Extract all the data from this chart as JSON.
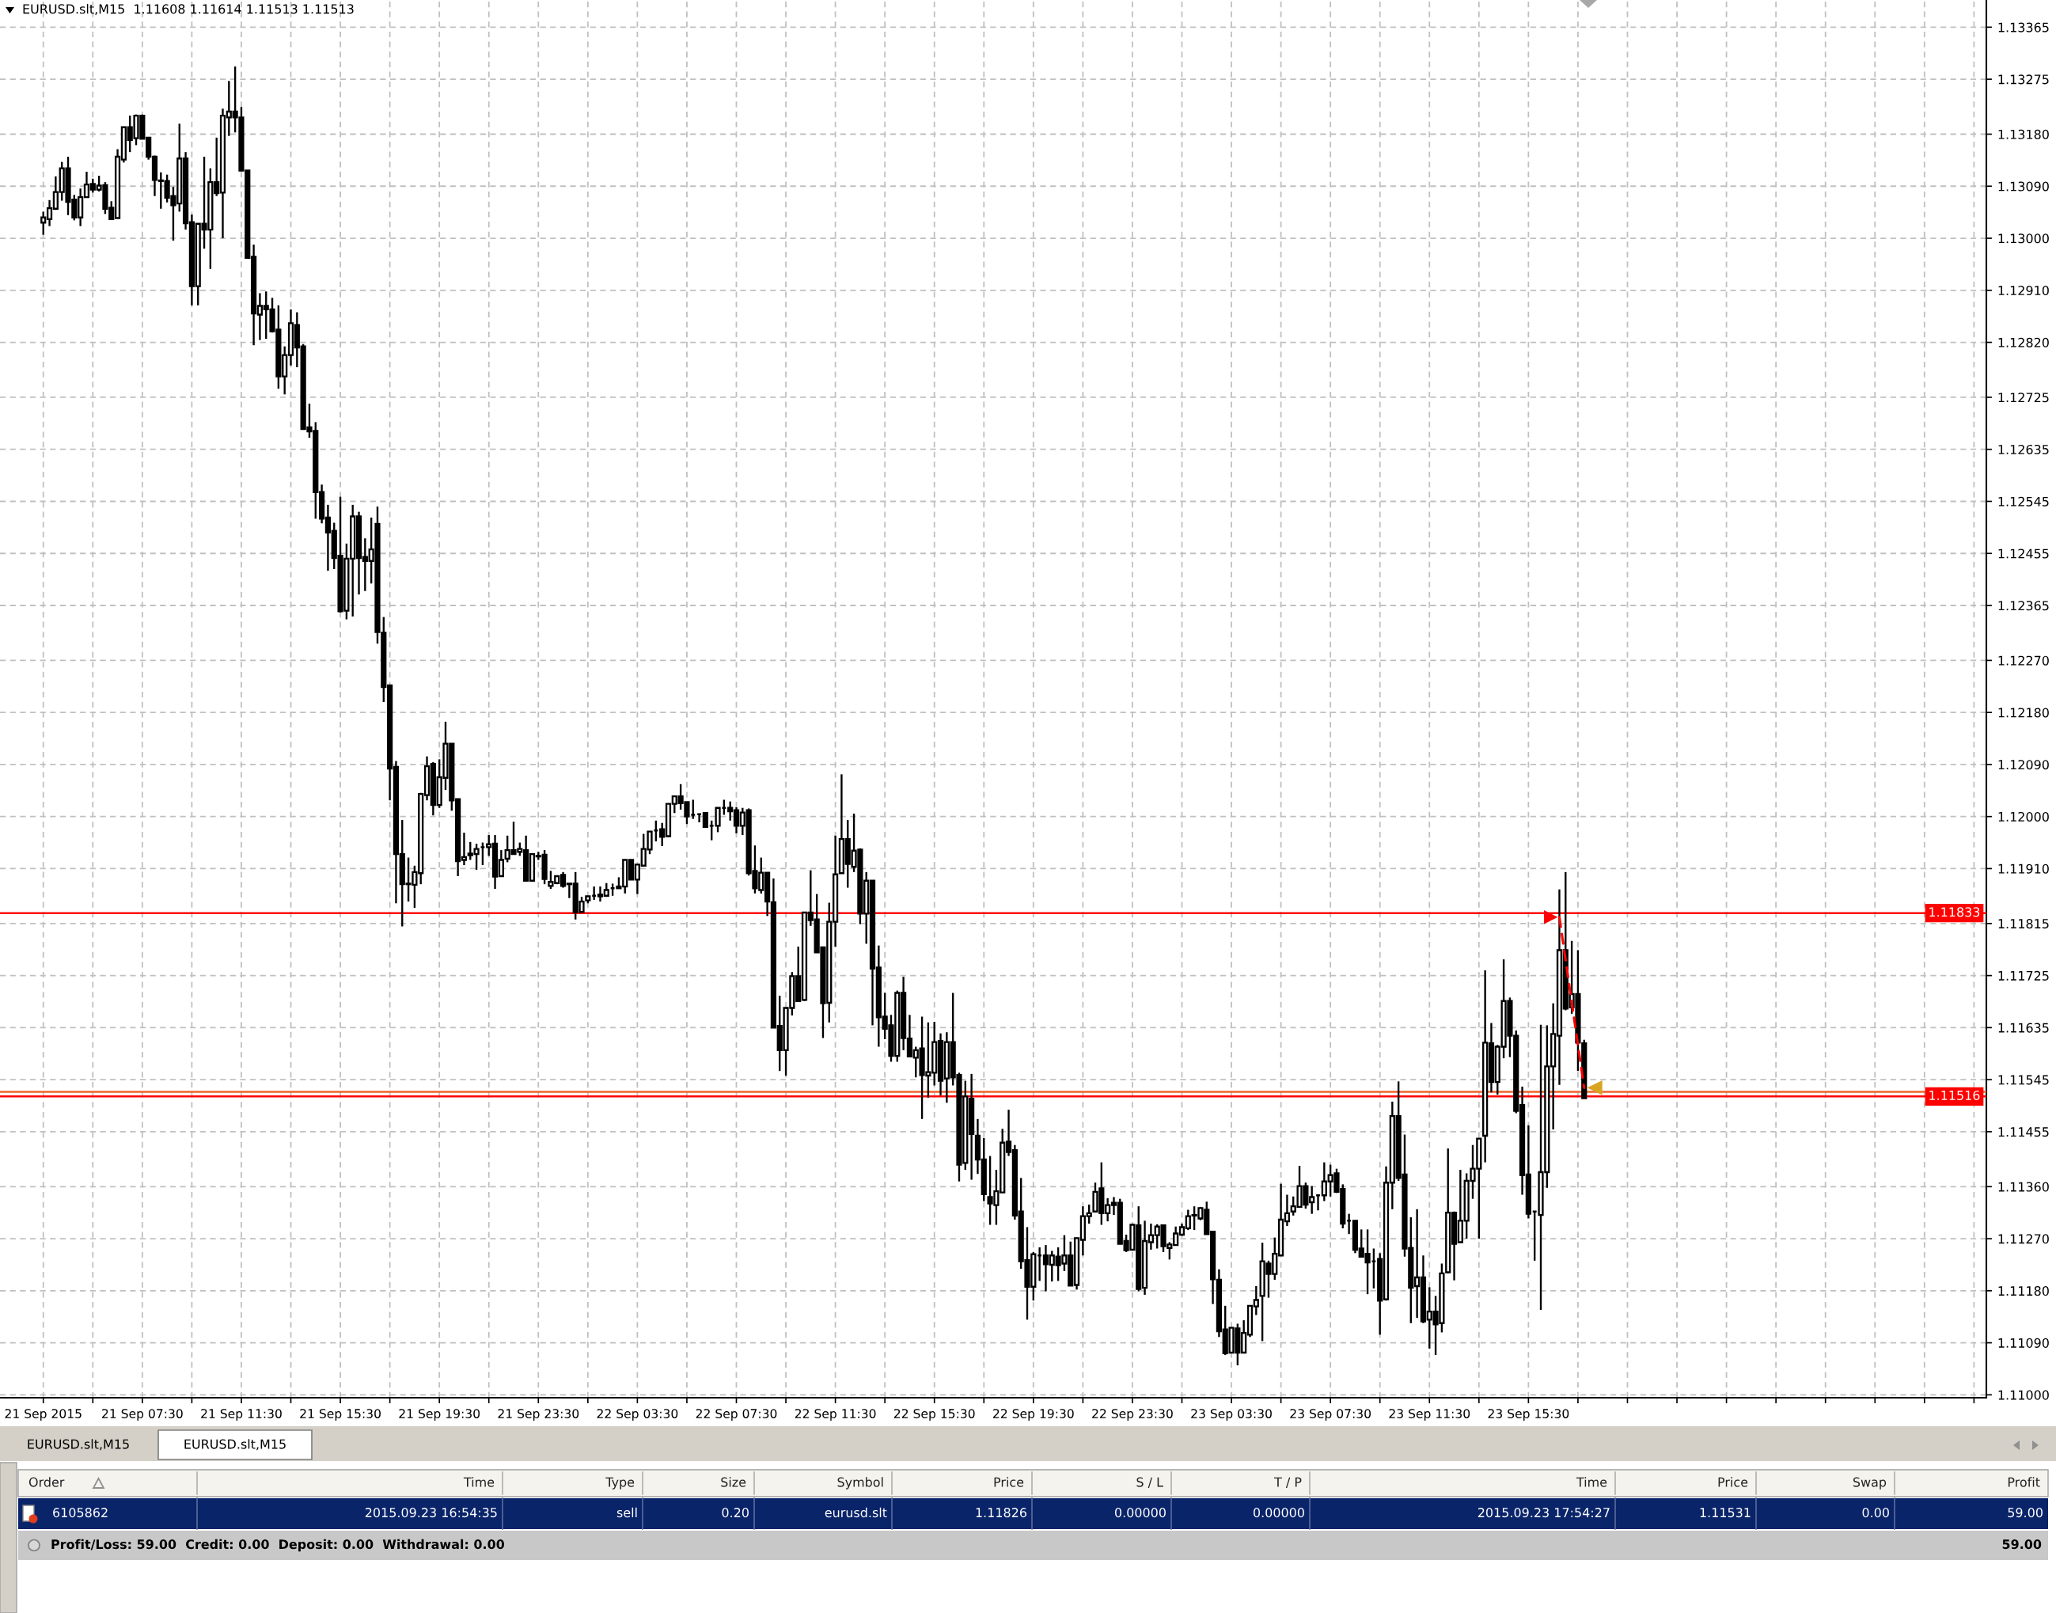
{
  "chart_data": [
    {
      "type": "candlestick",
      "title": "EURUSD.slt,M15  1.11608 1.11614 1.11513 1.11513",
      "color": "#000000",
      "x": [
        "2015-09-21T03:30",
        "2015-09-21T03:45",
        "2015-09-21T04:00",
        "2015-09-21T04:15",
        "2015-09-21T04:30",
        "2015-09-21T04:45",
        "2015-09-21T05:00",
        "2015-09-21T05:15",
        "2015-09-21T05:30",
        "2015-09-21T05:45",
        "2015-09-21T06:00",
        "2015-09-21T06:15",
        "2015-09-21T06:30",
        "2015-09-21T06:45",
        "2015-09-21T07:00",
        "2015-09-21T07:15",
        "2015-09-21T07:30",
        "2015-09-21T07:45",
        "2015-09-21T08:00",
        "2015-09-21T08:15",
        "2015-09-21T08:30",
        "2015-09-21T08:45",
        "2015-09-21T09:00",
        "2015-09-21T09:15",
        "2015-09-21T09:30",
        "2015-09-21T09:45",
        "2015-09-21T10:00",
        "2015-09-21T10:15",
        "2015-09-21T10:30",
        "2015-09-21T10:45",
        "2015-09-21T11:00",
        "2015-09-21T11:15",
        "2015-09-21T11:30",
        "2015-09-21T11:45",
        "2015-09-21T12:00",
        "2015-09-21T12:15",
        "2015-09-21T12:30",
        "2015-09-21T12:45",
        "2015-09-21T13:00",
        "2015-09-21T13:15",
        "2015-09-21T13:30",
        "2015-09-21T13:45",
        "2015-09-21T14:00",
        "2015-09-21T14:15",
        "2015-09-21T14:30",
        "2015-09-21T14:45",
        "2015-09-21T15:00",
        "2015-09-21T15:15",
        "2015-09-21T15:30",
        "2015-09-21T15:45",
        "2015-09-21T16:00",
        "2015-09-21T16:15",
        "2015-09-21T16:30",
        "2015-09-21T16:45",
        "2015-09-21T17:00",
        "2015-09-21T17:15",
        "2015-09-21T17:30",
        "2015-09-21T17:45",
        "2015-09-21T18:00",
        "2015-09-21T18:15",
        "2015-09-21T18:30",
        "2015-09-21T18:45",
        "2015-09-21T19:00",
        "2015-09-21T19:15",
        "2015-09-21T19:30",
        "2015-09-21T19:45",
        "2015-09-21T20:00",
        "2015-09-21T20:15",
        "2015-09-21T20:30",
        "2015-09-21T20:45",
        "2015-09-21T21:00",
        "2015-09-21T21:15",
        "2015-09-21T21:30",
        "2015-09-21T21:45",
        "2015-09-21T22:00",
        "2015-09-21T22:15",
        "2015-09-21T22:30",
        "2015-09-21T22:45",
        "2015-09-21T23:00",
        "2015-09-21T23:15",
        "2015-09-21T23:30",
        "2015-09-21T23:45",
        "2015-09-22T00:00",
        "2015-09-22T00:15",
        "2015-09-22T00:30",
        "2015-09-22T00:45",
        "2015-09-22T01:00",
        "2015-09-22T01:15",
        "2015-09-22T01:30",
        "2015-09-22T01:45",
        "2015-09-22T02:00",
        "2015-09-22T02:15",
        "2015-09-22T02:30",
        "2015-09-22T02:45",
        "2015-09-22T03:00",
        "2015-09-22T03:15",
        "2015-09-22T03:30",
        "2015-09-22T03:45",
        "2015-09-22T04:00",
        "2015-09-22T04:15",
        "2015-09-22T04:30",
        "2015-09-22T04:45",
        "2015-09-22T05:00",
        "2015-09-22T05:15",
        "2015-09-22T05:30",
        "2015-09-22T05:45",
        "2015-09-22T06:00",
        "2015-09-22T06:15",
        "2015-09-22T06:30",
        "2015-09-22T06:45",
        "2015-09-22T07:00",
        "2015-09-22T07:15",
        "2015-09-22T07:30",
        "2015-09-22T07:45",
        "2015-09-22T08:00",
        "2015-09-22T08:15",
        "2015-09-22T08:30",
        "2015-09-22T08:45",
        "2015-09-22T09:00",
        "2015-09-22T09:15",
        "2015-09-22T09:30",
        "2015-09-22T09:45",
        "2015-09-22T10:00",
        "2015-09-22T10:15",
        "2015-09-22T10:30",
        "2015-09-22T10:45",
        "2015-09-22T11:00",
        "2015-09-22T11:15",
        "2015-09-22T11:30",
        "2015-09-22T11:45",
        "2015-09-22T12:00",
        "2015-09-22T12:15",
        "2015-09-22T12:30",
        "2015-09-22T12:45",
        "2015-09-22T13:00",
        "2015-09-22T13:15",
        "2015-09-22T13:30",
        "2015-09-22T13:45",
        "2015-09-22T14:00",
        "2015-09-22T14:15",
        "2015-09-22T14:30",
        "2015-09-22T14:45",
        "2015-09-22T15:00",
        "2015-09-22T15:15",
        "2015-09-22T15:30",
        "2015-09-22T15:45",
        "2015-09-22T16:00",
        "2015-09-22T16:15",
        "2015-09-22T16:30",
        "2015-09-22T16:45",
        "2015-09-22T17:00",
        "2015-09-22T17:15",
        "2015-09-22T17:30",
        "2015-09-22T17:45",
        "2015-09-22T18:00",
        "2015-09-22T18:15",
        "2015-09-22T18:30",
        "2015-09-22T18:45",
        "2015-09-22T19:00",
        "2015-09-22T19:15",
        "2015-09-22T19:30",
        "2015-09-22T19:45",
        "2015-09-22T20:00",
        "2015-09-22T20:15",
        "2015-09-22T20:30",
        "2015-09-22T20:45",
        "2015-09-22T21:00",
        "2015-09-22T21:15",
        "2015-09-22T21:30",
        "2015-09-22T21:45",
        "2015-09-22T22:00",
        "2015-09-22T22:15",
        "2015-09-22T22:30",
        "2015-09-22T22:45",
        "2015-09-22T23:00",
        "2015-09-22T23:15",
        "2015-09-22T23:30",
        "2015-09-22T23:45",
        "2015-09-23T00:00",
        "2015-09-23T00:15",
        "2015-09-23T00:30",
        "2015-09-23T00:45",
        "2015-09-23T01:00",
        "2015-09-23T01:15",
        "2015-09-23T01:30",
        "2015-09-23T01:45",
        "2015-09-23T02:00",
        "2015-09-23T02:15",
        "2015-09-23T02:30",
        "2015-09-23T02:45",
        "2015-09-23T03:00",
        "2015-09-23T03:15",
        "2015-09-23T03:30",
        "2015-09-23T03:45",
        "2015-09-23T04:00",
        "2015-09-23T04:15",
        "2015-09-23T04:30",
        "2015-09-23T04:45",
        "2015-09-23T05:00",
        "2015-09-23T05:15",
        "2015-09-23T05:30",
        "2015-09-23T05:45",
        "2015-09-23T06:00",
        "2015-09-23T06:15",
        "2015-09-23T06:30",
        "2015-09-23T06:45",
        "2015-09-23T07:00",
        "2015-09-23T07:15",
        "2015-09-23T07:30",
        "2015-09-23T07:45",
        "2015-09-23T08:00",
        "2015-09-23T08:15",
        "2015-09-23T08:30",
        "2015-09-23T08:45",
        "2015-09-23T09:00",
        "2015-09-23T09:15",
        "2015-09-23T09:30",
        "2015-09-23T09:45",
        "2015-09-23T10:00",
        "2015-09-23T10:15",
        "2015-09-23T10:30",
        "2015-09-23T10:45",
        "2015-09-23T11:00",
        "2015-09-23T11:15",
        "2015-09-23T11:30",
        "2015-09-23T11:45",
        "2015-09-23T12:00",
        "2015-09-23T12:15",
        "2015-09-23T12:30",
        "2015-09-23T12:45",
        "2015-09-23T13:00",
        "2015-09-23T13:15",
        "2015-09-23T13:30",
        "2015-09-23T13:45",
        "2015-09-23T14:00",
        "2015-09-23T14:15",
        "2015-09-23T14:30",
        "2015-09-23T14:45",
        "2015-09-23T15:00",
        "2015-09-23T15:15",
        "2015-09-23T15:30",
        "2015-09-23T15:45",
        "2015-09-23T16:00",
        "2015-09-23T16:15",
        "2015-09-23T16:30",
        "2015-09-23T16:45",
        "2015-09-23T17:00",
        "2015-09-23T17:15",
        "2015-09-23T17:30",
        "2015-09-23T17:45"
      ],
      "ohlc": [
        [
          1.13027,
          1.13046,
          1.13006,
          1.13036
        ],
        [
          1.13033,
          1.13066,
          1.13021,
          1.13052
        ],
        [
          1.13051,
          1.13107,
          1.13049,
          1.1308
        ],
        [
          1.1308,
          1.13132,
          1.13065,
          1.13121
        ],
        [
          1.13121,
          1.13141,
          1.1304,
          1.13063
        ],
        [
          1.13067,
          1.13075,
          1.13031,
          1.13036
        ],
        [
          1.13036,
          1.13086,
          1.13021,
          1.13071
        ],
        [
          1.13071,
          1.13115,
          1.1307,
          1.13093
        ],
        [
          1.13094,
          1.13103,
          1.13079,
          1.13084
        ],
        [
          1.13084,
          1.13108,
          1.13081,
          1.13091
        ],
        [
          1.13092,
          1.13097,
          1.13042,
          1.13051
        ],
        [
          1.13053,
          1.13064,
          1.13033,
          1.13033
        ],
        [
          1.13035,
          1.13154,
          1.13035,
          1.13141
        ],
        [
          1.13136,
          1.13192,
          1.13131,
          1.13192
        ],
        [
          1.13192,
          1.13212,
          1.13149,
          1.1317
        ],
        [
          1.13173,
          1.13214,
          1.13161,
          1.13212
        ],
        [
          1.13212,
          1.13214,
          1.13172,
          1.13172
        ],
        [
          1.13174,
          1.13174,
          1.13136,
          1.13141
        ],
        [
          1.13141,
          1.13143,
          1.13073,
          1.13101
        ],
        [
          1.131,
          1.13114,
          1.13051,
          1.13099
        ],
        [
          1.13099,
          1.1311,
          1.13062,
          1.1307
        ],
        [
          1.13073,
          1.13089,
          1.12996,
          1.13057
        ],
        [
          1.1306,
          1.13198,
          1.13046,
          1.13138
        ],
        [
          1.13138,
          1.13149,
          1.13015,
          1.13026
        ],
        [
          1.13028,
          1.13041,
          1.12884,
          1.12917
        ],
        [
          1.12917,
          1.13025,
          1.12884,
          1.13025
        ],
        [
          1.13025,
          1.13141,
          1.12982,
          1.13015
        ],
        [
          1.13015,
          1.13121,
          1.12947,
          1.13097
        ],
        [
          1.13097,
          1.13174,
          1.13073,
          1.13078
        ],
        [
          1.13079,
          1.13224,
          1.13,
          1.13212
        ],
        [
          1.13209,
          1.13272,
          1.13177,
          1.13219
        ],
        [
          1.13219,
          1.13297,
          1.13183,
          1.13209
        ],
        [
          1.13209,
          1.13227,
          1.13117,
          1.13117
        ],
        [
          1.13117,
          1.13117,
          1.12966,
          1.12966
        ],
        [
          1.12968,
          1.12989,
          1.12815,
          1.1287
        ],
        [
          1.12868,
          1.12905,
          1.12824,
          1.12883
        ],
        [
          1.12883,
          1.12908,
          1.12826,
          1.12877
        ],
        [
          1.12877,
          1.12897,
          1.12837,
          1.12839
        ],
        [
          1.12842,
          1.12884,
          1.1274,
          1.12761
        ],
        [
          1.12761,
          1.12813,
          1.1273,
          1.12798
        ],
        [
          1.12798,
          1.12877,
          1.1278,
          1.12853
        ],
        [
          1.1285,
          1.12872,
          1.12777,
          1.12811
        ],
        [
          1.12813,
          1.12817,
          1.1267,
          1.1267
        ],
        [
          1.12673,
          1.12714,
          1.12655,
          1.12666
        ],
        [
          1.12667,
          1.12682,
          1.12515,
          1.12561
        ],
        [
          1.12561,
          1.12574,
          1.12507,
          1.12515
        ],
        [
          1.12517,
          1.12539,
          1.12425,
          1.12491
        ],
        [
          1.12494,
          1.12508,
          1.12428,
          1.12447
        ],
        [
          1.12451,
          1.12553,
          1.12353,
          1.12355
        ],
        [
          1.12356,
          1.12472,
          1.12341,
          1.12446
        ],
        [
          1.12446,
          1.12539,
          1.12346,
          1.12519
        ],
        [
          1.12519,
          1.12527,
          1.12384,
          1.12447
        ],
        [
          1.12449,
          1.12481,
          1.1239,
          1.12442
        ],
        [
          1.12442,
          1.12517,
          1.12403,
          1.12462
        ],
        [
          1.12506,
          1.12536,
          1.12299,
          1.12319
        ],
        [
          1.12318,
          1.12345,
          1.12198,
          1.12224
        ],
        [
          1.12227,
          1.12227,
          1.12028,
          1.12083
        ],
        [
          1.12086,
          1.12096,
          1.1185,
          1.11935
        ],
        [
          1.11935,
          1.11994,
          1.1181,
          1.11883
        ],
        [
          1.11884,
          1.11929,
          1.11853,
          1.11883
        ],
        [
          1.11882,
          1.11915,
          1.11842,
          1.11904
        ],
        [
          1.11902,
          1.12041,
          1.11883,
          1.12039
        ],
        [
          1.12037,
          1.12104,
          1.12028,
          1.12087
        ],
        [
          1.12091,
          1.12094,
          1.12002,
          1.1202
        ],
        [
          1.1202,
          1.12099,
          1.12015,
          1.12068
        ],
        [
          1.12067,
          1.12164,
          1.12046,
          1.12126
        ],
        [
          1.12126,
          1.12126,
          1.1201,
          1.12028
        ],
        [
          1.1203,
          1.1203,
          1.11897,
          1.11923
        ],
        [
          1.11925,
          1.11972,
          1.11916,
          1.1193
        ],
        [
          1.11936,
          1.11956,
          1.11925,
          1.11933
        ],
        [
          1.11935,
          1.11953,
          1.11908,
          1.11944
        ],
        [
          1.11947,
          1.11955,
          1.11916,
          1.11947
        ],
        [
          1.11947,
          1.11968,
          1.11932,
          1.11952
        ],
        [
          1.11953,
          1.11968,
          1.11875,
          1.11896
        ],
        [
          1.11897,
          1.11942,
          1.11897,
          1.11925
        ],
        [
          1.11927,
          1.11967,
          1.11921,
          1.11942
        ],
        [
          1.11942,
          1.11991,
          1.11935,
          1.11935
        ],
        [
          1.11939,
          1.11955,
          1.11932,
          1.11944
        ],
        [
          1.11942,
          1.11967,
          1.11889,
          1.11889
        ],
        [
          1.11889,
          1.11936,
          1.11889,
          1.11935
        ],
        [
          1.11932,
          1.11939,
          1.11925,
          1.11931
        ],
        [
          1.11934,
          1.11942,
          1.11883,
          1.11892
        ],
        [
          1.1188,
          1.11906,
          1.11875,
          1.11887
        ],
        [
          1.11885,
          1.11898,
          1.11883,
          1.11897
        ],
        [
          1.11899,
          1.11904,
          1.11877,
          1.1188
        ],
        [
          1.11884,
          1.11884,
          1.11859,
          1.11883
        ],
        [
          1.11884,
          1.11904,
          1.11822,
          1.11835
        ],
        [
          1.11835,
          1.11861,
          1.11835,
          1.11853
        ],
        [
          1.11855,
          1.11863,
          1.1185,
          1.11862
        ],
        [
          1.11863,
          1.11879,
          1.11856,
          1.11863
        ],
        [
          1.11865,
          1.11879,
          1.11853,
          1.11862
        ],
        [
          1.11863,
          1.11885,
          1.11861,
          1.11873
        ],
        [
          1.11876,
          1.11884,
          1.11863,
          1.11876
        ],
        [
          1.11879,
          1.11895,
          1.11876,
          1.11876
        ],
        [
          1.11879,
          1.11925,
          1.11867,
          1.11925
        ],
        [
          1.11925,
          1.11925,
          1.11891,
          1.11891
        ],
        [
          1.11891,
          1.11917,
          1.11866,
          1.11917
        ],
        [
          1.11915,
          1.1197,
          1.11914,
          1.11944
        ],
        [
          1.11943,
          1.11974,
          1.11935,
          1.11974
        ],
        [
          1.11976,
          1.11993,
          1.11957,
          1.11976
        ],
        [
          1.11978,
          1.11989,
          1.11949,
          1.11965
        ],
        [
          1.11966,
          1.12022,
          1.11965,
          1.12022
        ],
        [
          1.12022,
          1.12035,
          1.12006,
          1.12035
        ],
        [
          1.12035,
          1.12056,
          1.12012,
          1.12023
        ],
        [
          1.12025,
          1.12025,
          1.11987,
          1.12
        ],
        [
          1.12003,
          1.12029,
          1.11996,
          1.12003
        ],
        [
          1.12004,
          1.12004,
          1.1199,
          1.12004
        ],
        [
          1.12006,
          1.12007,
          1.11982,
          1.11982
        ],
        [
          1.11984,
          1.11993,
          1.11959,
          1.11984
        ],
        [
          1.11984,
          1.12015,
          1.11973,
          1.12015
        ],
        [
          1.12015,
          1.12029,
          1.12003,
          1.12015
        ],
        [
          1.12015,
          1.12026,
          1.11993,
          1.12009
        ],
        [
          1.12011,
          1.12016,
          1.11971,
          1.11984
        ],
        [
          1.11984,
          1.12015,
          1.11968,
          1.12007
        ],
        [
          1.12011,
          1.12014,
          1.11898,
          1.11902
        ],
        [
          1.11906,
          1.1195,
          1.11867,
          1.11876
        ],
        [
          1.11873,
          1.11929,
          1.11867,
          1.11903
        ],
        [
          1.11903,
          1.11903,
          1.11828,
          1.11853
        ],
        [
          1.11852,
          1.11893,
          1.11635,
          1.11635
        ],
        [
          1.11638,
          1.1169,
          1.1156,
          1.11596
        ],
        [
          1.11596,
          1.11669,
          1.11552,
          1.11669
        ],
        [
          1.11669,
          1.11731,
          1.11656,
          1.11724
        ],
        [
          1.11724,
          1.11775,
          1.11681,
          1.11681
        ],
        [
          1.11683,
          1.11834,
          1.11681,
          1.11834
        ],
        [
          1.11834,
          1.11907,
          1.11811,
          1.11821
        ],
        [
          1.11822,
          1.11866,
          1.11765,
          1.11765
        ],
        [
          1.11774,
          1.11774,
          1.11617,
          1.11677
        ],
        [
          1.11678,
          1.11851,
          1.11644,
          1.11818
        ],
        [
          1.11818,
          1.11967,
          1.11775,
          1.119
        ],
        [
          1.11902,
          1.12073,
          1.11902,
          1.11961
        ],
        [
          1.11961,
          1.11994,
          1.11877,
          1.11918
        ],
        [
          1.11913,
          1.12005,
          1.11904,
          1.11941
        ],
        [
          1.11943,
          1.11945,
          1.11814,
          1.11832
        ],
        [
          1.11832,
          1.11904,
          1.1178,
          1.11889
        ],
        [
          1.11889,
          1.11889,
          1.11639,
          1.11737
        ],
        [
          1.11739,
          1.11777,
          1.11602,
          1.11653
        ],
        [
          1.11654,
          1.11695,
          1.11615,
          1.11633
        ],
        [
          1.11639,
          1.11657,
          1.11576,
          1.11586
        ],
        [
          1.11586,
          1.11699,
          1.11576,
          1.11695
        ],
        [
          1.11695,
          1.11723,
          1.11596,
          1.11617
        ],
        [
          1.11616,
          1.11657,
          1.11585,
          1.11585
        ],
        [
          1.11583,
          1.11602,
          1.11549,
          1.11596
        ],
        [
          1.11599,
          1.11654,
          1.11477,
          1.11553
        ],
        [
          1.11552,
          1.11644,
          1.11514,
          1.11558
        ],
        [
          1.11557,
          1.11645,
          1.11535,
          1.1161
        ],
        [
          1.11612,
          1.11625,
          1.11518,
          1.11543
        ],
        [
          1.11547,
          1.11627,
          1.11505,
          1.1161
        ],
        [
          1.1161,
          1.11695,
          1.11535,
          1.11549
        ],
        [
          1.11553,
          1.11557,
          1.11369,
          1.11398
        ],
        [
          1.11401,
          1.11543,
          1.11389,
          1.11516
        ],
        [
          1.11512,
          1.11555,
          1.11372,
          1.11451
        ],
        [
          1.11448,
          1.11477,
          1.11382,
          1.11407
        ],
        [
          1.11407,
          1.11444,
          1.11335,
          1.11347
        ],
        [
          1.11342,
          1.11413,
          1.11294,
          1.11331
        ],
        [
          1.11328,
          1.11389,
          1.11294,
          1.11352
        ],
        [
          1.1135,
          1.1146,
          1.1135,
          1.11436
        ],
        [
          1.11438,
          1.11493,
          1.11413,
          1.1142
        ],
        [
          1.11423,
          1.11432,
          1.11303,
          1.1131
        ],
        [
          1.11317,
          1.11375,
          1.11218,
          1.11231
        ],
        [
          1.11233,
          1.1129,
          1.1113,
          1.11187
        ],
        [
          1.11187,
          1.11247,
          1.11163,
          1.11243
        ],
        [
          1.11241,
          1.11255,
          1.11197,
          1.11241
        ],
        [
          1.11241,
          1.11259,
          1.11179,
          1.11226
        ],
        [
          1.11225,
          1.11249,
          1.11196,
          1.11241
        ],
        [
          1.11239,
          1.11255,
          1.11197,
          1.11224
        ],
        [
          1.11227,
          1.11276,
          1.11214,
          1.11241
        ],
        [
          1.11241,
          1.11265,
          1.11188,
          1.11189
        ],
        [
          1.1119,
          1.11272,
          1.11182,
          1.11271
        ],
        [
          1.11268,
          1.11326,
          1.11241,
          1.11309
        ],
        [
          1.11309,
          1.11329,
          1.11296,
          1.11314
        ],
        [
          1.11317,
          1.11367,
          1.11317,
          1.11351
        ],
        [
          1.11357,
          1.11402,
          1.11294,
          1.11314
        ],
        [
          1.11314,
          1.1134,
          1.113,
          1.11328
        ],
        [
          1.11332,
          1.11342,
          1.11311,
          1.11328
        ],
        [
          1.11332,
          1.11339,
          1.11261,
          1.11261
        ],
        [
          1.11266,
          1.11277,
          1.11247,
          1.1125
        ],
        [
          1.11251,
          1.11296,
          1.11251,
          1.11294
        ],
        [
          1.11293,
          1.11326,
          1.11179,
          1.11183
        ],
        [
          1.11185,
          1.11301,
          1.11173,
          1.11266
        ],
        [
          1.11264,
          1.11296,
          1.11251,
          1.11276
        ],
        [
          1.11276,
          1.11295,
          1.11253,
          1.11291
        ],
        [
          1.11293,
          1.11293,
          1.11247,
          1.11257
        ],
        [
          1.11254,
          1.11264,
          1.11234,
          1.1126
        ],
        [
          1.11259,
          1.11291,
          1.11259,
          1.11279
        ],
        [
          1.11277,
          1.11296,
          1.11275,
          1.1129
        ],
        [
          1.11288,
          1.1132,
          1.11285,
          1.11309
        ],
        [
          1.11311,
          1.11326,
          1.11285,
          1.1131
        ],
        [
          1.11305,
          1.11325,
          1.11302,
          1.11323
        ],
        [
          1.1132,
          1.11334,
          1.11278,
          1.11278
        ],
        [
          1.11282,
          1.11282,
          1.11157,
          1.112
        ],
        [
          1.11199,
          1.11217,
          1.111,
          1.1111
        ],
        [
          1.11113,
          1.11154,
          1.11069,
          1.11072
        ],
        [
          1.11073,
          1.11117,
          1.11073,
          1.11116
        ],
        [
          1.11115,
          1.11123,
          1.11051,
          1.11073
        ],
        [
          1.11073,
          1.11129,
          1.11073,
          1.11107
        ],
        [
          1.11104,
          1.11154,
          1.111,
          1.11154
        ],
        [
          1.11153,
          1.11188,
          1.11138,
          1.11164
        ],
        [
          1.11171,
          1.11263,
          1.11093,
          1.11231
        ],
        [
          1.11227,
          1.11232,
          1.11168,
          1.11209
        ],
        [
          1.11209,
          1.11272,
          1.11199,
          1.11244
        ],
        [
          1.11241,
          1.11365,
          1.11241,
          1.11303
        ],
        [
          1.113,
          1.11346,
          1.11292,
          1.11314
        ],
        [
          1.11317,
          1.11343,
          1.1131,
          1.11326
        ],
        [
          1.11325,
          1.11396,
          1.11325,
          1.11361
        ],
        [
          1.11361,
          1.11367,
          1.11322,
          1.11329
        ],
        [
          1.11333,
          1.11361,
          1.11313,
          1.11342
        ],
        [
          1.11345,
          1.11345,
          1.11319,
          1.11345
        ],
        [
          1.11345,
          1.11402,
          1.11335,
          1.11369
        ],
        [
          1.11369,
          1.11398,
          1.11343,
          1.1138
        ],
        [
          1.11383,
          1.11391,
          1.11349,
          1.11351
        ],
        [
          1.11356,
          1.11364,
          1.11288,
          1.11296
        ],
        [
          1.11301,
          1.11313,
          1.11278,
          1.11301
        ],
        [
          1.11301,
          1.11301,
          1.11245,
          1.11251
        ],
        [
          1.11253,
          1.11286,
          1.11239,
          1.11239
        ],
        [
          1.11244,
          1.11286,
          1.11174,
          1.11229
        ],
        [
          1.11231,
          1.11253,
          1.11184,
          1.11231
        ],
        [
          1.11235,
          1.11245,
          1.11104,
          1.11163
        ],
        [
          1.11165,
          1.11395,
          1.11163,
          1.11367
        ],
        [
          1.11367,
          1.11507,
          1.11321,
          1.11482
        ],
        [
          1.11482,
          1.11542,
          1.1137,
          1.11375
        ],
        [
          1.11381,
          1.1145,
          1.11239,
          1.11253
        ],
        [
          1.11254,
          1.11307,
          1.11124,
          1.11185
        ],
        [
          1.11188,
          1.11321,
          1.11133,
          1.11203
        ],
        [
          1.11203,
          1.11241,
          1.11124,
          1.11127
        ],
        [
          1.1113,
          1.11186,
          1.1108,
          1.11144
        ],
        [
          1.11144,
          1.11171,
          1.11069,
          1.11122
        ],
        [
          1.11124,
          1.11227,
          1.11108,
          1.1121
        ],
        [
          1.11212,
          1.11426,
          1.1121,
          1.11315
        ],
        [
          1.11315,
          1.11317,
          1.11198,
          1.11261
        ],
        [
          1.11264,
          1.11389,
          1.11264,
          1.11301
        ],
        [
          1.11301,
          1.11383,
          1.1127,
          1.1137
        ],
        [
          1.1137,
          1.11432,
          1.11339,
          1.11391
        ],
        [
          1.11391,
          1.11443,
          1.1127,
          1.11443
        ],
        [
          1.11448,
          1.11734,
          1.11402,
          1.11609
        ],
        [
          1.11608,
          1.11643,
          1.11523,
          1.11541
        ],
        [
          1.11541,
          1.11605,
          1.11519,
          1.11602
        ],
        [
          1.11602,
          1.11753,
          1.11582,
          1.11681
        ],
        [
          1.11681,
          1.11687,
          1.11584,
          1.11621
        ],
        [
          1.11621,
          1.1163,
          1.11487,
          1.11491
        ],
        [
          1.11501,
          1.11533,
          1.11346,
          1.1138
        ],
        [
          1.11381,
          1.11466,
          1.11305,
          1.11313
        ],
        [
          1.11317,
          1.11317,
          1.11232,
          1.11317
        ],
        [
          1.11311,
          1.1164,
          1.11147,
          1.11385
        ],
        [
          1.11385,
          1.11639,
          1.11358,
          1.11568
        ],
        [
          1.11568,
          1.11677,
          1.11459,
          1.11624
        ],
        [
          1.11621,
          1.11874,
          1.11536,
          1.11769
        ],
        [
          1.11769,
          1.11904,
          1.11665,
          1.11668
        ],
        [
          1.1167,
          1.11785,
          1.11659,
          1.11693
        ],
        [
          1.11693,
          1.11769,
          1.1156,
          1.11609
        ],
        [
          1.11608,
          1.11614,
          1.11513,
          1.11513
        ]
      ],
      "series": [
        {
          "type": "line",
          "x": [
            "2015-09-23T16:45",
            "2015-09-23T17:45"
          ],
          "values": [
            1.11826,
            1.11531
          ],
          "color": "#ff0000",
          "line_style": "dashed"
        }
      ],
      "ref_lines": [
        {
          "axis": "y",
          "value": 1.11833,
          "label": "1.11833",
          "color": "#ff0000"
        },
        {
          "axis": "y",
          "value": 1.11524,
          "color": "#f0642d"
        },
        {
          "axis": "y",
          "value": 1.11516,
          "label": "1.11516",
          "color": "#ff0000"
        }
      ],
      "xlim": [
        "2015-09-21T01:45",
        "2015-09-24T10:00"
      ],
      "ylim": [
        1.10995,
        1.13412
      ],
      "xticks": [
        {
          "value": "2015-09-21T03:30",
          "label": "21 Sep 2015"
        },
        {
          "value": "2015-09-21T05:30",
          "label": null
        },
        {
          "value": "2015-09-21T07:30",
          "label": "21 Sep 07:30"
        },
        {
          "value": "2015-09-21T09:30",
          "label": null
        },
        {
          "value": "2015-09-21T11:30",
          "label": "21 Sep 11:30"
        },
        {
          "value": "2015-09-21T13:30",
          "label": null
        },
        {
          "value": "2015-09-21T15:30",
          "label": "21 Sep 15:30"
        },
        {
          "value": "2015-09-21T17:30",
          "label": null
        },
        {
          "value": "2015-09-21T19:30",
          "label": "21 Sep 19:30"
        },
        {
          "value": "2015-09-21T21:30",
          "label": null
        },
        {
          "value": "2015-09-21T23:30",
          "label": "21 Sep 23:30"
        },
        {
          "value": "2015-09-22T01:30",
          "label": null
        },
        {
          "value": "2015-09-22T03:30",
          "label": "22 Sep 03:30"
        },
        {
          "value": "2015-09-22T05:30",
          "label": null
        },
        {
          "value": "2015-09-22T07:30",
          "label": "22 Sep 07:30"
        },
        {
          "value": "2015-09-22T09:30",
          "label": null
        },
        {
          "value": "2015-09-22T11:30",
          "label": "22 Sep 11:30"
        },
        {
          "value": "2015-09-22T13:30",
          "label": null
        },
        {
          "value": "2015-09-22T15:30",
          "label": "22 Sep 15:30"
        },
        {
          "value": "2015-09-22T17:30",
          "label": null
        },
        {
          "value": "2015-09-22T19:30",
          "label": "22 Sep 19:30"
        },
        {
          "value": "2015-09-22T21:30",
          "label": null
        },
        {
          "value": "2015-09-22T23:30",
          "label": "22 Sep 23:30"
        },
        {
          "value": "2015-09-23T01:30",
          "label": null
        },
        {
          "value": "2015-09-23T03:30",
          "label": "23 Sep 03:30"
        },
        {
          "value": "2015-09-23T05:30",
          "label": null
        },
        {
          "value": "2015-09-23T07:30",
          "label": "23 Sep 07:30"
        },
        {
          "value": "2015-09-23T09:30",
          "label": null
        },
        {
          "value": "2015-09-23T11:30",
          "label": "23 Sep 11:30"
        },
        {
          "value": "2015-09-23T13:30",
          "label": null
        },
        {
          "value": "2015-09-23T15:30",
          "label": "23 Sep 15:30"
        },
        {
          "value": "2015-09-23T17:30",
          "label": null
        },
        {
          "value": "2015-09-23T19:30",
          "label": null
        },
        {
          "value": "2015-09-23T21:30",
          "label": null
        },
        {
          "value": "2015-09-23T23:30",
          "label": null
        },
        {
          "value": "2015-09-24T01:30",
          "label": null
        },
        {
          "value": "2015-09-24T03:30",
          "label": null
        },
        {
          "value": "2015-09-24T05:30",
          "label": null
        },
        {
          "value": "2015-09-24T07:30",
          "label": null
        },
        {
          "value": "2015-09-24T09:30",
          "label": null
        }
      ],
      "yticks": [
        {
          "value": 1.11,
          "label": "1.11000"
        },
        {
          "value": 1.1109,
          "label": "1.11090"
        },
        {
          "value": 1.1118,
          "label": "1.11180"
        },
        {
          "value": 1.1127,
          "label": "1.11270"
        },
        {
          "value": 1.1136,
          "label": "1.11360"
        },
        {
          "value": 1.11455,
          "label": "1.11455"
        },
        {
          "value": 1.11545,
          "label": "1.11545"
        },
        {
          "value": 1.11635,
          "label": "1.11635"
        },
        {
          "value": 1.11725,
          "label": "1.11725"
        },
        {
          "value": 1.11815,
          "label": "1.11815"
        },
        {
          "value": 1.1191,
          "label": "1.11910"
        },
        {
          "value": 1.12,
          "label": "1.12000"
        },
        {
          "value": 1.1209,
          "label": "1.12090"
        },
        {
          "value": 1.1218,
          "label": "1.12180"
        },
        {
          "value": 1.1227,
          "label": "1.12270"
        },
        {
          "value": 1.12365,
          "label": "1.12365"
        },
        {
          "value": 1.12455,
          "label": "1.12455"
        },
        {
          "value": 1.12545,
          "label": "1.12545"
        },
        {
          "value": 1.12635,
          "label": "1.12635"
        },
        {
          "value": 1.12725,
          "label": "1.12725"
        },
        {
          "value": 1.1282,
          "label": "1.12820"
        },
        {
          "value": 1.1291,
          "label": "1.12910"
        },
        {
          "value": 1.13,
          "label": "1.13000"
        },
        {
          "value": 1.1309,
          "label": "1.13090"
        },
        {
          "value": 1.1318,
          "label": "1.13180"
        },
        {
          "value": 1.13275,
          "label": "1.13275"
        },
        {
          "value": 1.13365,
          "label": "1.13365"
        }
      ],
      "grid": true
    },
    {
      "type": "other",
      "categories": [
        "Order",
        "Time",
        "Type",
        "Size",
        "Symbol",
        "Price",
        "S / L",
        "T / P",
        "Time",
        "Price",
        "Swap",
        "Profit"
      ],
      "cell_labels": [
        [
          "6105862",
          "2015.09.23 16:54:35",
          "sell",
          "0.20",
          "eurusd.slt",
          "1.11826",
          "0.00000",
          "0.00000",
          "2015.09.23 17:54:27",
          "1.11531",
          "0.00",
          "59.00"
        ]
      ],
      "annotations": [
        "EURUSD.slt,M15",
        "EURUSD.slt,M15",
        "Profit/Loss: 59.00  Credit: 0.00  Deposit: 0.00  Withdrawal: 0.00",
        "59.00"
      ]
    }
  ]
}
